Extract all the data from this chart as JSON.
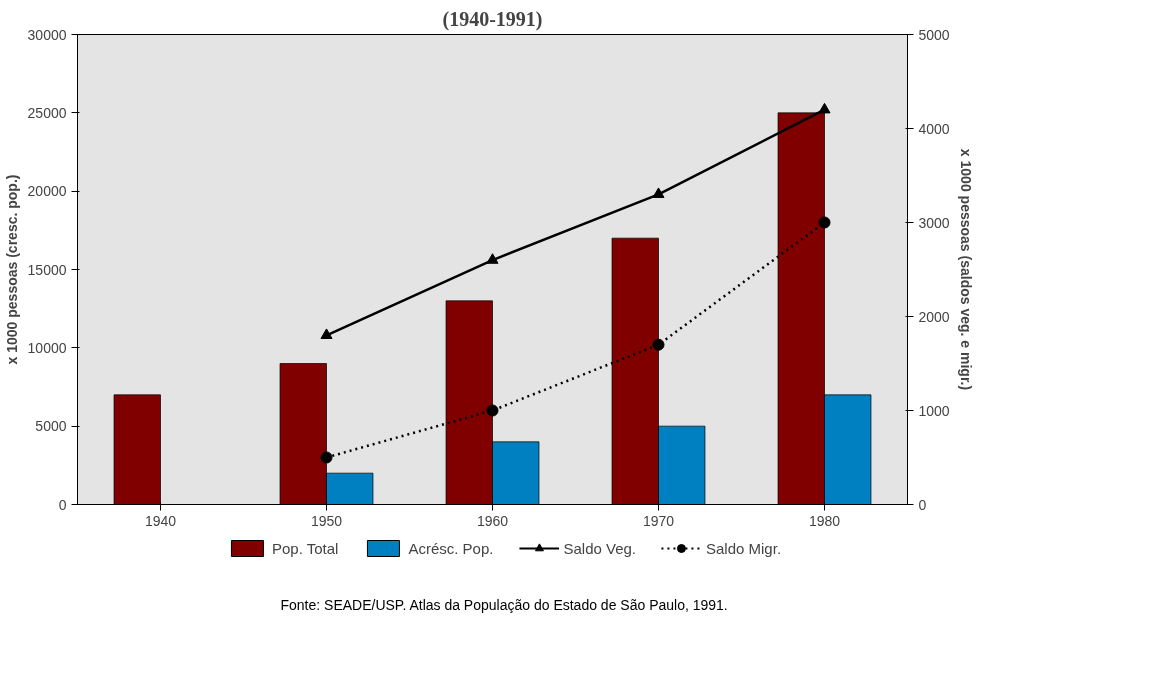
{
  "chart_data": {
    "type": "bar",
    "title": "(1940-1991)",
    "categories": [
      "1940",
      "1950",
      "1960",
      "1970",
      "1980"
    ],
    "ylabel": "x 1000 pessoas (cresc. pop.)",
    "y2label": "x 1000 pessoas (saldos veg. e migr.)",
    "ylim": [
      0,
      30000
    ],
    "yticks": [
      0,
      5000,
      10000,
      15000,
      20000,
      25000,
      30000
    ],
    "y2lim": [
      0,
      5000
    ],
    "y2ticks": [
      0,
      1000,
      2000,
      3000,
      4000,
      5000
    ],
    "series": [
      {
        "name": "Pop. Total",
        "color": "#800000",
        "values": [
          7000,
          9000,
          13000,
          17000,
          25000
        ]
      },
      {
        "name": "Acrésc. Pop.",
        "color": "#0080c0",
        "values": [
          null,
          2000,
          4000,
          5000,
          7000
        ]
      },
      {
        "name": "Saldo Veg.",
        "type": "line",
        "axis": "y2",
        "color": "#000000",
        "marker": "triangle",
        "line_style": "solid",
        "values": [
          null,
          1800,
          2600,
          3300,
          4200
        ]
      },
      {
        "name": "Saldo Migr.",
        "type": "line",
        "axis": "y2",
        "color": "#000000",
        "marker": "circle",
        "line_style": "dotted",
        "values": [
          null,
          500,
          1000,
          1700,
          3000
        ]
      }
    ],
    "legend": "bottom",
    "grid": false,
    "annotations": [
      "Fonte: SEADE/USP. Atlas da População do Estado de São Paulo, 1991."
    ]
  }
}
